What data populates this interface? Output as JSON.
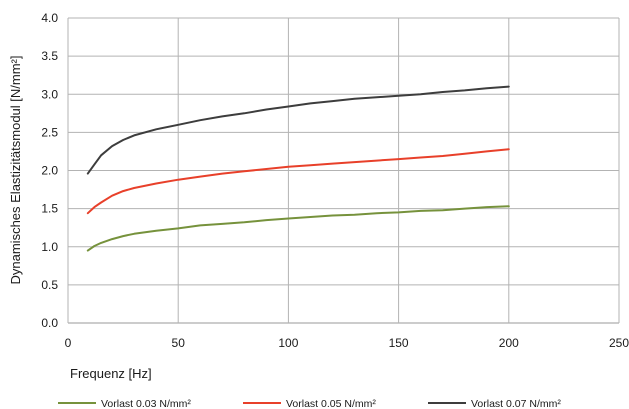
{
  "chart_data": {
    "type": "line",
    "xlabel": "Frequenz [Hz]",
    "ylabel": "Dynamisches Elastizitätsmodul [N/mm²]",
    "xlim": [
      0,
      250
    ],
    "ylim": [
      0,
      4
    ],
    "x_ticks": [
      "0",
      "50",
      "100",
      "150",
      "200",
      "250"
    ],
    "y_ticks": [
      "0.0",
      "0.5",
      "1.0",
      "1.5",
      "2.0",
      "2.5",
      "3.0",
      "3.5",
      "4.0"
    ],
    "grid": true,
    "legend_position": "bottom",
    "series": [
      {
        "name": "Vorlast 0.03 N/mm²",
        "color": "#76923c",
        "points": [
          [
            9,
            0.95
          ],
          [
            12,
            1.01
          ],
          [
            15,
            1.05
          ],
          [
            20,
            1.1
          ],
          [
            25,
            1.14
          ],
          [
            30,
            1.17
          ],
          [
            40,
            1.21
          ],
          [
            50,
            1.24
          ],
          [
            60,
            1.28
          ],
          [
            70,
            1.3
          ],
          [
            80,
            1.32
          ],
          [
            90,
            1.35
          ],
          [
            100,
            1.37
          ],
          [
            110,
            1.39
          ],
          [
            120,
            1.41
          ],
          [
            130,
            1.42
          ],
          [
            140,
            1.44
          ],
          [
            150,
            1.45
          ],
          [
            160,
            1.47
          ],
          [
            170,
            1.48
          ],
          [
            180,
            1.5
          ],
          [
            190,
            1.52
          ],
          [
            200,
            1.53
          ]
        ]
      },
      {
        "name": "Vorlast 0.05 N/mm²",
        "color": "#e8402a",
        "points": [
          [
            9,
            1.44
          ],
          [
            12,
            1.52
          ],
          [
            15,
            1.58
          ],
          [
            20,
            1.67
          ],
          [
            25,
            1.73
          ],
          [
            30,
            1.77
          ],
          [
            40,
            1.83
          ],
          [
            50,
            1.88
          ],
          [
            60,
            1.92
          ],
          [
            70,
            1.96
          ],
          [
            80,
            1.99
          ],
          [
            90,
            2.02
          ],
          [
            100,
            2.05
          ],
          [
            110,
            2.07
          ],
          [
            120,
            2.09
          ],
          [
            130,
            2.11
          ],
          [
            140,
            2.13
          ],
          [
            150,
            2.15
          ],
          [
            160,
            2.17
          ],
          [
            170,
            2.19
          ],
          [
            180,
            2.22
          ],
          [
            190,
            2.25
          ],
          [
            200,
            2.28
          ]
        ]
      },
      {
        "name": "Vorlast 0.07 N/mm²",
        "color": "#3d3d3d",
        "points": [
          [
            9,
            1.96
          ],
          [
            12,
            2.08
          ],
          [
            15,
            2.2
          ],
          [
            20,
            2.32
          ],
          [
            25,
            2.4
          ],
          [
            30,
            2.46
          ],
          [
            40,
            2.54
          ],
          [
            50,
            2.6
          ],
          [
            60,
            2.66
          ],
          [
            70,
            2.71
          ],
          [
            80,
            2.75
          ],
          [
            90,
            2.8
          ],
          [
            100,
            2.84
          ],
          [
            110,
            2.88
          ],
          [
            120,
            2.91
          ],
          [
            130,
            2.94
          ],
          [
            140,
            2.96
          ],
          [
            150,
            2.98
          ],
          [
            160,
            3.0
          ],
          [
            170,
            3.03
          ],
          [
            180,
            3.05
          ],
          [
            190,
            3.08
          ],
          [
            200,
            3.1
          ]
        ]
      }
    ]
  }
}
